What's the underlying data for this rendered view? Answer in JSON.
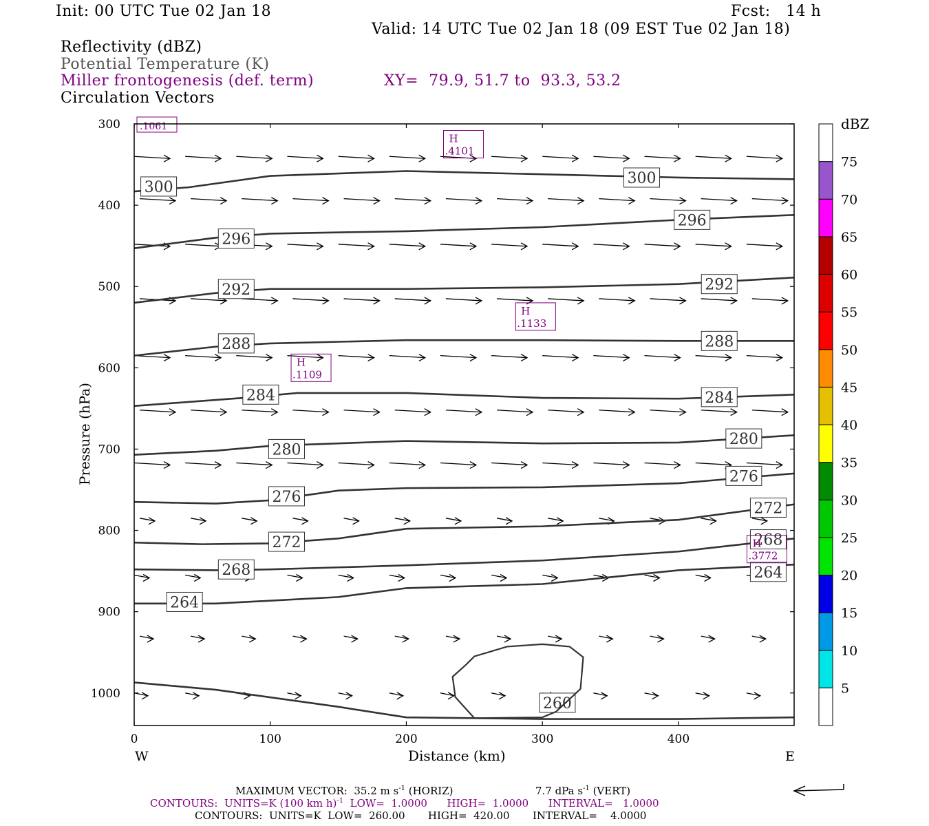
{
  "header": {
    "init": "Init: 00 UTC Tue 02 Jan 18",
    "fcst": "Fcst:   14 h",
    "valid": "Valid: 14 UTC Tue 02 Jan 18 (09 EST Tue 02 Jan 18)"
  },
  "fields": {
    "line1": "Reflectivity (dBZ)",
    "line2": "Potential Temperature (K)",
    "line3": "Miller frontogenesis (def. term)",
    "xy": "XY=  79.9, 51.7 to  93.3, 53.2",
    "line4": "Circulation Vectors"
  },
  "axes": {
    "y_label": "Pressure (hPa)",
    "x_label": "Distance (km)",
    "west": "W",
    "east": "E"
  },
  "colorbar": {
    "unit": "dBZ",
    "levels": [
      "5",
      "10",
      "15",
      "20",
      "25",
      "30",
      "35",
      "40",
      "45",
      "50",
      "55",
      "60",
      "65",
      "70",
      "75"
    ],
    "colors": [
      "#00e5e5",
      "#0099e5",
      "#0000e5",
      "#00e500",
      "#00c800",
      "#008c00",
      "#ffff00",
      "#e5c000",
      "#ff8c00",
      "#ff0000",
      "#dc0000",
      "#b40000",
      "#ff00ff",
      "#9955cc",
      "#ffffff"
    ]
  },
  "footer": {
    "max_vector": "MAXIMUM VECTOR:  35.2 m s",
    "exp1": "-1",
    "horiz": " (HORIZ)",
    "vert_val": "7.7 dPa s",
    "exp2": "-1",
    "vert": " (VERT)",
    "contours1_a": "CONTOURS:  UNITS=K (100 km h)",
    "exp3": "-1",
    "contours1_b": "  LOW=  1.0000      HIGH=  1.0000      INTERVAL=   1.0000",
    "contours2": "CONTOURS:  UNITS=K  LOW=  260.00       HIGH=  420.00       INTERVAL=    4.0000"
  },
  "chart_data": {
    "type": "cross-section",
    "title": "",
    "xlabel": "Distance (km)",
    "ylabel": "Pressure (hPa)",
    "xlim": [
      0,
      485
    ],
    "ylim": [
      1040,
      300
    ],
    "x_ticks": [
      0,
      100,
      200,
      300,
      400
    ],
    "y_ticks": [
      300,
      400,
      500,
      600,
      700,
      800,
      900,
      1000
    ],
    "theta_contours": [
      {
        "label": "300",
        "points": [
          [
            0,
            383
          ],
          [
            40,
            378
          ],
          [
            100,
            364
          ],
          [
            200,
            358
          ],
          [
            300,
            362
          ],
          [
            400,
            366
          ],
          [
            485,
            368
          ]
        ],
        "label_at": [
          [
            18,
            377
          ],
          [
            373,
            366
          ]
        ]
      },
      {
        "label": "296",
        "points": [
          [
            0,
            453
          ],
          [
            60,
            440
          ],
          [
            100,
            435
          ],
          [
            200,
            432
          ],
          [
            300,
            427
          ],
          [
            400,
            418
          ],
          [
            485,
            412
          ]
        ],
        "label_at": [
          [
            75,
            441
          ],
          [
            410,
            418
          ]
        ]
      },
      {
        "label": "292",
        "points": [
          [
            0,
            520
          ],
          [
            60,
            508
          ],
          [
            100,
            503
          ],
          [
            200,
            503
          ],
          [
            300,
            501
          ],
          [
            400,
            497
          ],
          [
            485,
            489
          ]
        ],
        "label_at": [
          [
            75,
            503
          ],
          [
            430,
            497
          ]
        ]
      },
      {
        "label": "288",
        "points": [
          [
            0,
            585
          ],
          [
            60,
            574
          ],
          [
            100,
            570
          ],
          [
            200,
            566
          ],
          [
            300,
            566
          ],
          [
            400,
            567
          ],
          [
            485,
            567
          ]
        ],
        "label_at": [
          [
            75,
            570
          ],
          [
            430,
            567
          ]
        ]
      },
      {
        "label": "284",
        "points": [
          [
            0,
            647
          ],
          [
            80,
            637
          ],
          [
            120,
            631
          ],
          [
            200,
            631
          ],
          [
            300,
            637
          ],
          [
            400,
            638
          ],
          [
            485,
            633
          ]
        ],
        "label_at": [
          [
            93,
            633
          ],
          [
            430,
            636
          ]
        ]
      },
      {
        "label": "280",
        "points": [
          [
            0,
            707
          ],
          [
            60,
            702
          ],
          [
            100,
            696
          ],
          [
            200,
            690
          ],
          [
            300,
            693
          ],
          [
            400,
            692
          ],
          [
            485,
            683
          ]
        ],
        "label_at": [
          [
            112,
            700
          ],
          [
            448,
            687
          ]
        ]
      },
      {
        "label": "276",
        "points": [
          [
            0,
            765
          ],
          [
            60,
            767
          ],
          [
            100,
            763
          ],
          [
            150,
            751
          ],
          [
            200,
            748
          ],
          [
            300,
            747
          ],
          [
            400,
            742
          ],
          [
            485,
            730
          ]
        ],
        "label_at": [
          [
            112,
            758
          ],
          [
            448,
            733
          ]
        ]
      },
      {
        "label": "272",
        "points": [
          [
            0,
            815
          ],
          [
            50,
            817
          ],
          [
            100,
            816
          ],
          [
            150,
            810
          ],
          [
            200,
            798
          ],
          [
            300,
            795
          ],
          [
            400,
            787
          ],
          [
            485,
            768
          ]
        ],
        "label_at": [
          [
            112,
            814
          ],
          [
            466,
            772
          ]
        ]
      },
      {
        "label": "268",
        "points": [
          [
            0,
            848
          ],
          [
            60,
            849
          ],
          [
            100,
            848
          ],
          [
            200,
            843
          ],
          [
            300,
            837
          ],
          [
            400,
            826
          ],
          [
            485,
            810
          ]
        ],
        "label_at": [
          [
            75,
            848
          ],
          [
            466,
            811
          ]
        ]
      },
      {
        "label": "264",
        "points": [
          [
            0,
            890
          ],
          [
            60,
            890
          ],
          [
            150,
            882
          ],
          [
            200,
            871
          ],
          [
            300,
            866
          ],
          [
            400,
            849
          ],
          [
            485,
            842
          ]
        ],
        "label_at": [
          [
            37,
            888
          ],
          [
            466,
            851
          ]
        ]
      },
      {
        "label": "260",
        "points": [
          [
            0,
            987
          ],
          [
            60,
            996
          ],
          [
            150,
            1017
          ],
          [
            200,
            1030
          ],
          [
            300,
            1032
          ],
          [
            400,
            1032
          ],
          [
            485,
            1030
          ]
        ],
        "label_at": [
          [
            311,
            1012
          ]
        ]
      }
    ],
    "closed_260_contour": [
      [
        244,
        965
      ],
      [
        250,
        955
      ],
      [
        274,
        943
      ],
      [
        300,
        940
      ],
      [
        320,
        943
      ],
      [
        330,
        956
      ],
      [
        328,
        995
      ],
      [
        310,
        1023
      ],
      [
        300,
        1030
      ],
      [
        250,
        1031
      ],
      [
        236,
        1005
      ],
      [
        234,
        980
      ],
      [
        244,
        965
      ]
    ],
    "frontogenesis_highs": [
      {
        "x": 242,
        "p": 325,
        "value": ".4101"
      },
      {
        "x": 295,
        "p": 537,
        "value": ".1133"
      },
      {
        "x": 130,
        "p": 600,
        "value": ".1109"
      },
      {
        "x": 465,
        "p": 823,
        "value": ".3772"
      }
    ],
    "frontogenesis_cut_label": ".1061",
    "vector_row_p": [
      340,
      392,
      448,
      515,
      585,
      652,
      717,
      785,
      855,
      930,
      1000
    ],
    "grid": false
  }
}
